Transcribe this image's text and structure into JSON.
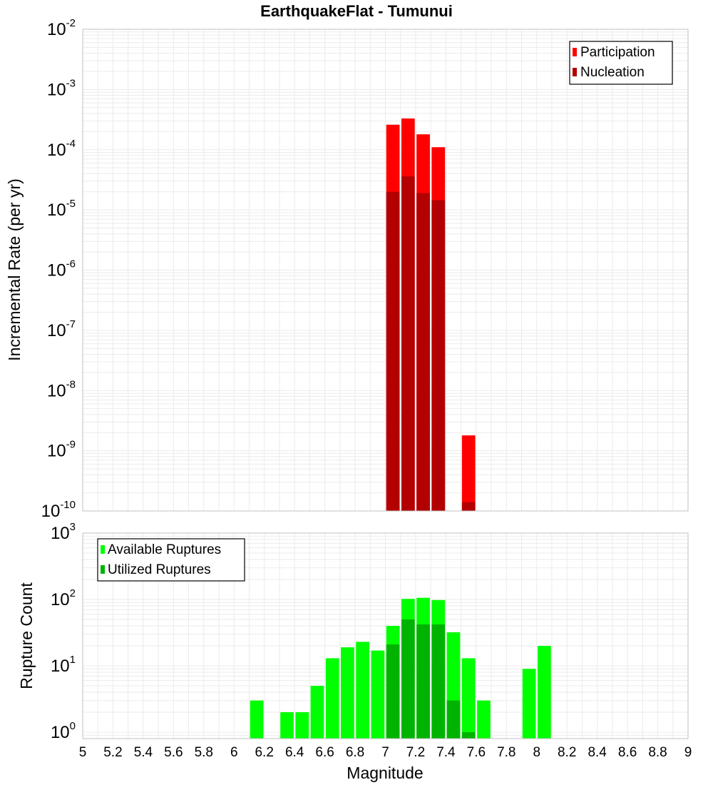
{
  "title": "EarthquakeFlat - Tumunui",
  "xlabel": "Magnitude",
  "x_ticks": [
    "5",
    "5.2",
    "5.4",
    "5.6",
    "5.8",
    "6",
    "6.2",
    "6.4",
    "6.6",
    "6.8",
    "7",
    "7.2",
    "7.4",
    "7.6",
    "7.8",
    "8",
    "8.2",
    "8.4",
    "8.6",
    "8.8",
    "9"
  ],
  "colors": {
    "participation": "#ff0000",
    "nucleation": "#b30000",
    "available": "#00ff00",
    "utilized": "#00b300",
    "grid": "#ebebeb",
    "frame": "#c0c0c0"
  },
  "chart_data": [
    {
      "type": "bar",
      "ylabel": "Incremental Rate (per yr)",
      "yscale": "log",
      "ylim": [
        1e-10,
        0.01
      ],
      "xlim": [
        5,
        9
      ],
      "y_ticks": [
        {
          "base": "10",
          "exp": "-10"
        },
        {
          "base": "10",
          "exp": "-9"
        },
        {
          "base": "10",
          "exp": "-8"
        },
        {
          "base": "10",
          "exp": "-7"
        },
        {
          "base": "10",
          "exp": "-6"
        },
        {
          "base": "10",
          "exp": "-5"
        },
        {
          "base": "10",
          "exp": "-4"
        },
        {
          "base": "10",
          "exp": "-3"
        },
        {
          "base": "10",
          "exp": "-2"
        }
      ],
      "legend_position": "top-right",
      "series": [
        {
          "name": "Participation",
          "x": [
            7.05,
            7.15,
            7.25,
            7.35,
            7.55
          ],
          "values": [
            0.00026,
            0.00033,
            0.00018,
            0.00011,
            1.8e-09
          ]
        },
        {
          "name": "Nucleation",
          "x": [
            7.05,
            7.15,
            7.25,
            7.35,
            7.55
          ],
          "values": [
            2e-05,
            3.6e-05,
            1.9e-05,
            1.45e-05,
            1.4e-10
          ]
        }
      ]
    },
    {
      "type": "bar",
      "ylabel": "Rupture Count",
      "yscale": "log",
      "ylim": [
        0.8,
        1000
      ],
      "xlim": [
        5,
        9
      ],
      "y_ticks": [
        {
          "base": "10",
          "exp": "0"
        },
        {
          "base": "10",
          "exp": "1"
        },
        {
          "base": "10",
          "exp": "2"
        },
        {
          "base": "10",
          "exp": "3"
        }
      ],
      "legend_position": "top-left",
      "series": [
        {
          "name": "Available Ruptures",
          "x": [
            6.15,
            6.35,
            6.45,
            6.55,
            6.65,
            6.75,
            6.85,
            6.95,
            7.05,
            7.15,
            7.25,
            7.35,
            7.45,
            7.55,
            7.65,
            7.95,
            8.05
          ],
          "values": [
            3,
            2,
            2,
            5,
            13,
            19,
            23,
            17,
            40,
            102,
            106,
            98,
            32,
            13,
            3,
            9,
            20
          ]
        },
        {
          "name": "Utilized Ruptures",
          "x": [
            7.05,
            7.15,
            7.25,
            7.35,
            7.45,
            7.55
          ],
          "values": [
            21,
            50,
            42,
            42,
            3,
            1
          ]
        }
      ]
    }
  ]
}
